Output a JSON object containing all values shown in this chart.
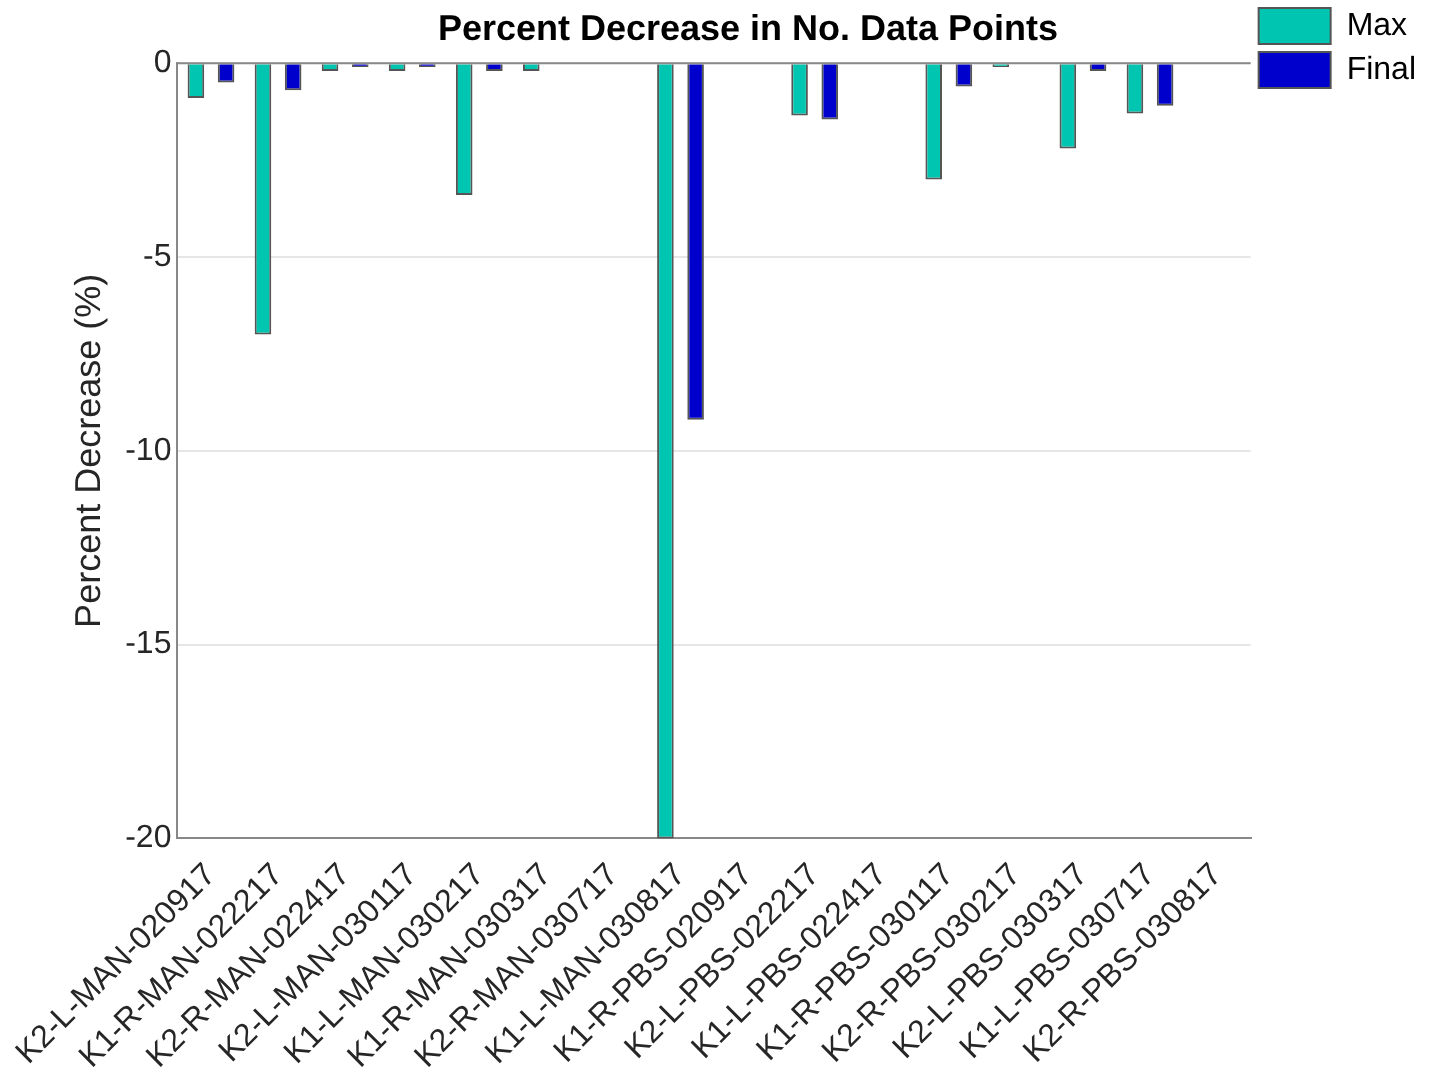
{
  "chart_data": {
    "type": "bar",
    "title": "Percent Decrease in No. Data Points",
    "ylabel": "Percent Decrease (%)",
    "categories": [
      "K2-L-MAN-020917",
      "K1-R-MAN-022217",
      "K2-R-MAN-022417",
      "K2-L-MAN-030117",
      "K1-L-MAN-030217",
      "K1-R-MAN-030317",
      "K2-R-MAN-030717",
      "K1-L-MAN-030817",
      "K1-R-PBS-020917",
      "K2-L-PBS-022217",
      "K1-L-PBS-022417",
      "K1-R-PBS-030117",
      "K2-R-PBS-030217",
      "K2-L-PBS-030317",
      "K1-L-PBS-030717",
      "K2-R-PBS-030817"
    ],
    "series": [
      {
        "name": "Max",
        "color": "#00c5b0",
        "values": [
          -0.9,
          -7.0,
          -0.2,
          -0.2,
          -3.4,
          -0.2,
          0,
          -20,
          0,
          -1.35,
          0,
          -3.0,
          -0.1,
          -2.2,
          -1.3,
          0
        ]
      },
      {
        "name": "Final",
        "color": "#0000cc",
        "values": [
          -0.5,
          -0.7,
          -0.1,
          -0.1,
          -0.2,
          0,
          0,
          -9.2,
          0,
          -1.45,
          0,
          -0.6,
          0,
          -0.2,
          -1.1,
          0
        ]
      }
    ],
    "ylim": [
      -20,
      0
    ],
    "yticks": [
      -20,
      -15,
      -10,
      -5,
      0
    ],
    "grid": "y",
    "legend": "top right"
  }
}
